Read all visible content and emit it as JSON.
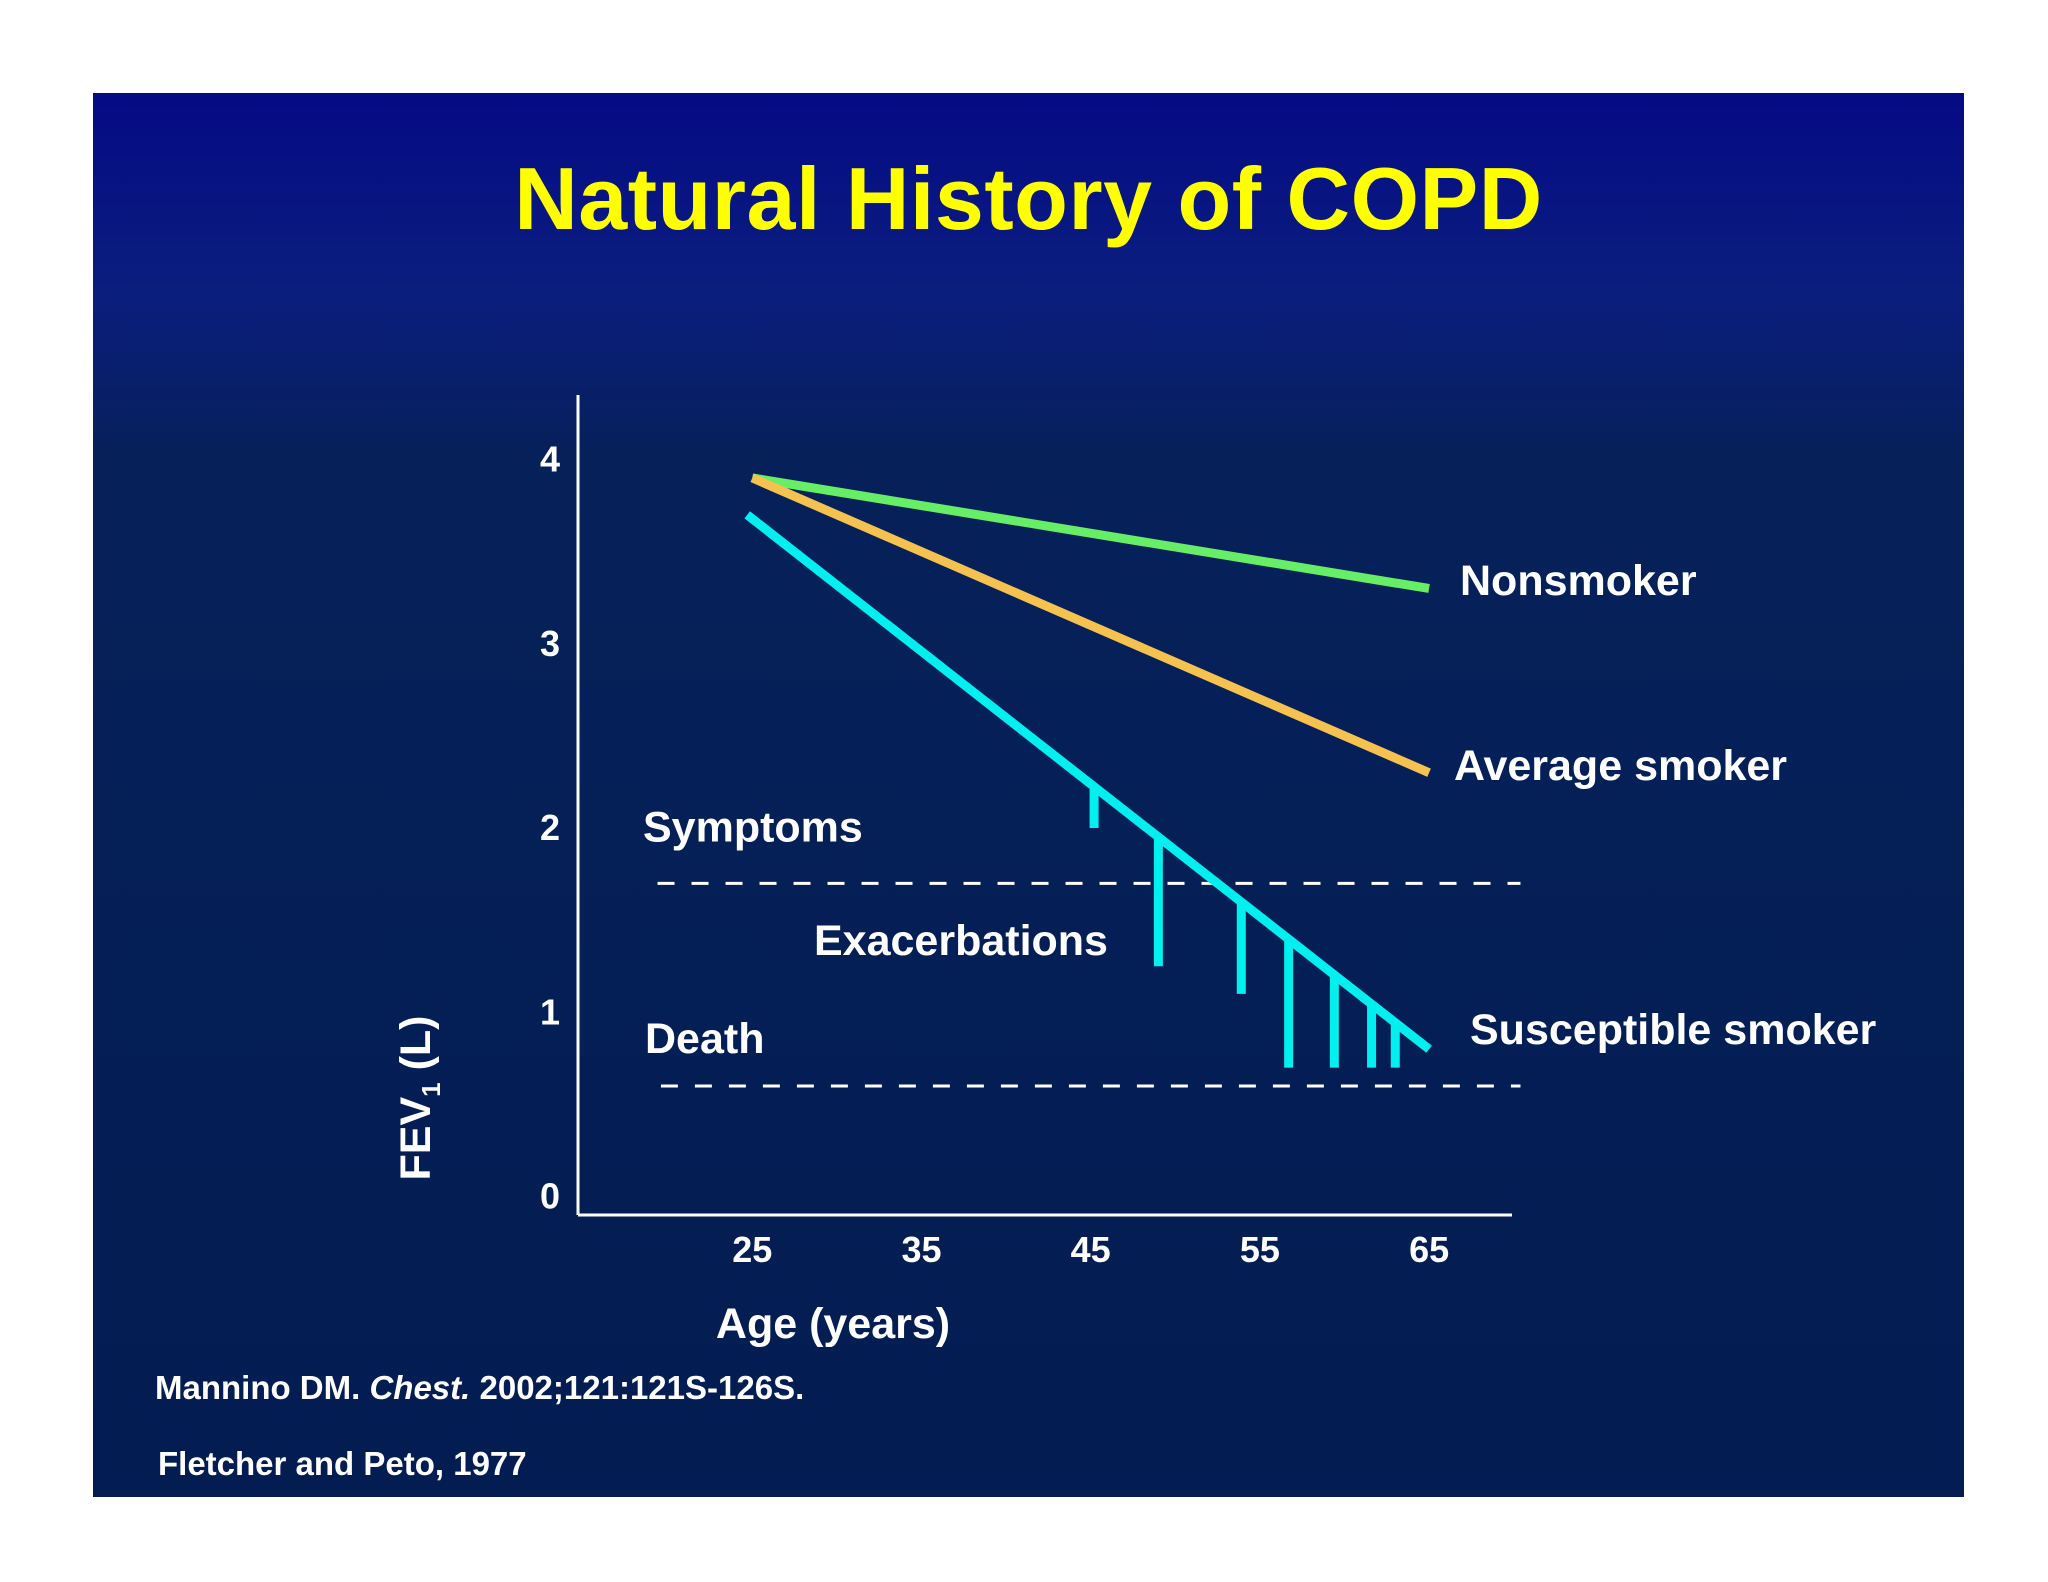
{
  "slide": {
    "title": "Natural History of COPD",
    "references": {
      "ref1_author": "Mannino DM. ",
      "ref1_journal": "Chest.",
      "ref1_detail": " 2002;121:121S-126S.",
      "ref2": "Fletcher and Peto, 1977"
    },
    "colors": {
      "background_top": "#050a85",
      "background_bottom": "#031d52",
      "title": "#ffff00",
      "text": "#ffffff"
    }
  },
  "chart_data": {
    "type": "line",
    "title": "",
    "xlabel": "Age (years)",
    "ylabel_main": "FEV",
    "ylabel_sub": "1",
    "ylabel_unit": " (L)",
    "xlim": [
      14.7,
      69.9
    ],
    "ylim": [
      -0.1,
      4.35
    ],
    "x_ticks": [
      25,
      35,
      45,
      55,
      65
    ],
    "y_ticks": [
      0,
      1,
      2,
      3,
      4
    ],
    "grid": false,
    "series": [
      {
        "name": "Nonsmoker",
        "color": "#66ee66",
        "x": [
          25,
          65
        ],
        "y": [
          3.9,
          3.3
        ]
      },
      {
        "name": "Average smoker",
        "color": "#f5c250",
        "x": [
          25,
          65
        ],
        "y": [
          3.9,
          2.3
        ]
      },
      {
        "name": "Susceptible smoker",
        "color": "#00f0f0",
        "x": [
          24.7,
          65
        ],
        "y": [
          3.7,
          0.8
        ]
      }
    ],
    "thresholds": [
      {
        "name": "Symptoms",
        "y": 1.7,
        "x_range": [
          19.4,
          70.4
        ]
      },
      {
        "name": "Death",
        "y": 0.6,
        "x_range": [
          19.6,
          70.4
        ]
      }
    ],
    "exacerbations": {
      "label": "Exacerbations",
      "x": [
        45.2,
        49.0,
        53.9,
        56.7,
        59.4,
        61.6,
        63.0
      ],
      "y_bottom": [
        2.0,
        1.25,
        1.1,
        0.7,
        0.7,
        0.7,
        0.7
      ]
    }
  }
}
